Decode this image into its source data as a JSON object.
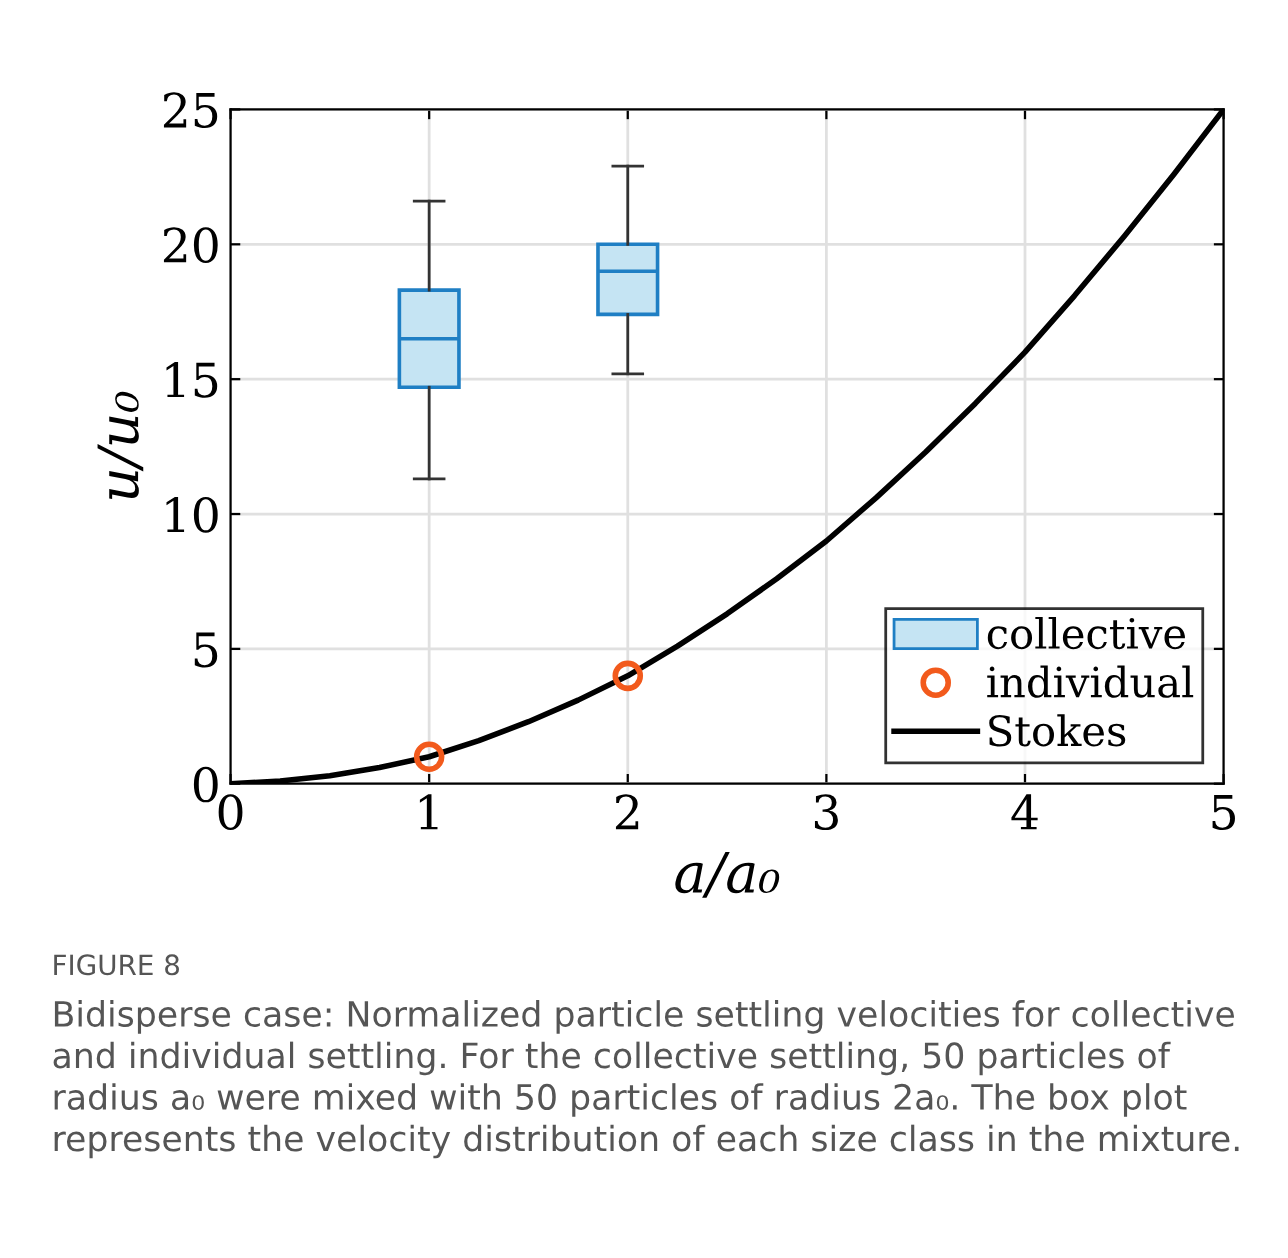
{
  "chart_data": {
    "type": "box",
    "xlabel": "a/a₀",
    "ylabel": "u/u₀",
    "xlim": [
      0,
      5
    ],
    "xticks": [
      0,
      1,
      2,
      3,
      4,
      5
    ],
    "ylim": [
      0,
      25
    ],
    "yticks": [
      0,
      5,
      10,
      15,
      20,
      25
    ],
    "grid": true,
    "legend": "bottom right",
    "series": [
      {
        "name": "collective",
        "color": "#c5e4f3",
        "x": [
          1,
          2
        ],
        "boxes": [
          {
            "low": 11.3,
            "q1": 14.7,
            "median": 16.5,
            "q3": 18.3,
            "high": 21.6
          },
          {
            "low": 15.2,
            "q1": 17.4,
            "median": 19.0,
            "q3": 20.0,
            "high": 22.9
          }
        ]
      },
      {
        "name": "individual",
        "type": "scatter",
        "color": "#f25a1c",
        "marker": "circle",
        "x": [
          1,
          2
        ],
        "values": [
          1,
          4
        ]
      },
      {
        "name": "Stokes",
        "type": "line",
        "color": "#000000",
        "line_style": "solid",
        "x": [
          0,
          0.25,
          0.5,
          0.75,
          1,
          1.25,
          1.5,
          1.75,
          2,
          2.25,
          2.5,
          2.75,
          3,
          3.25,
          3.5,
          3.75,
          4,
          4.25,
          4.5,
          4.75,
          5
        ],
        "values": [
          0,
          0.1,
          0.3,
          0.6,
          1,
          1.6,
          2.3,
          3.1,
          4,
          5.1,
          6.3,
          7.6,
          9,
          10.6,
          12.3,
          14.1,
          16,
          18.1,
          20.3,
          22.6,
          25
        ]
      }
    ],
    "annotations": [
      "FIGURE 8",
      "Bidisperse case: Normalized particle settling velocities for collective and individual settling. For the collective settling, 50 particles of radius a₀ were mixed with 50 particles of radius 2a₀. The box plot represents the velocity distribution of each size class in the mixture."
    ]
  }
}
